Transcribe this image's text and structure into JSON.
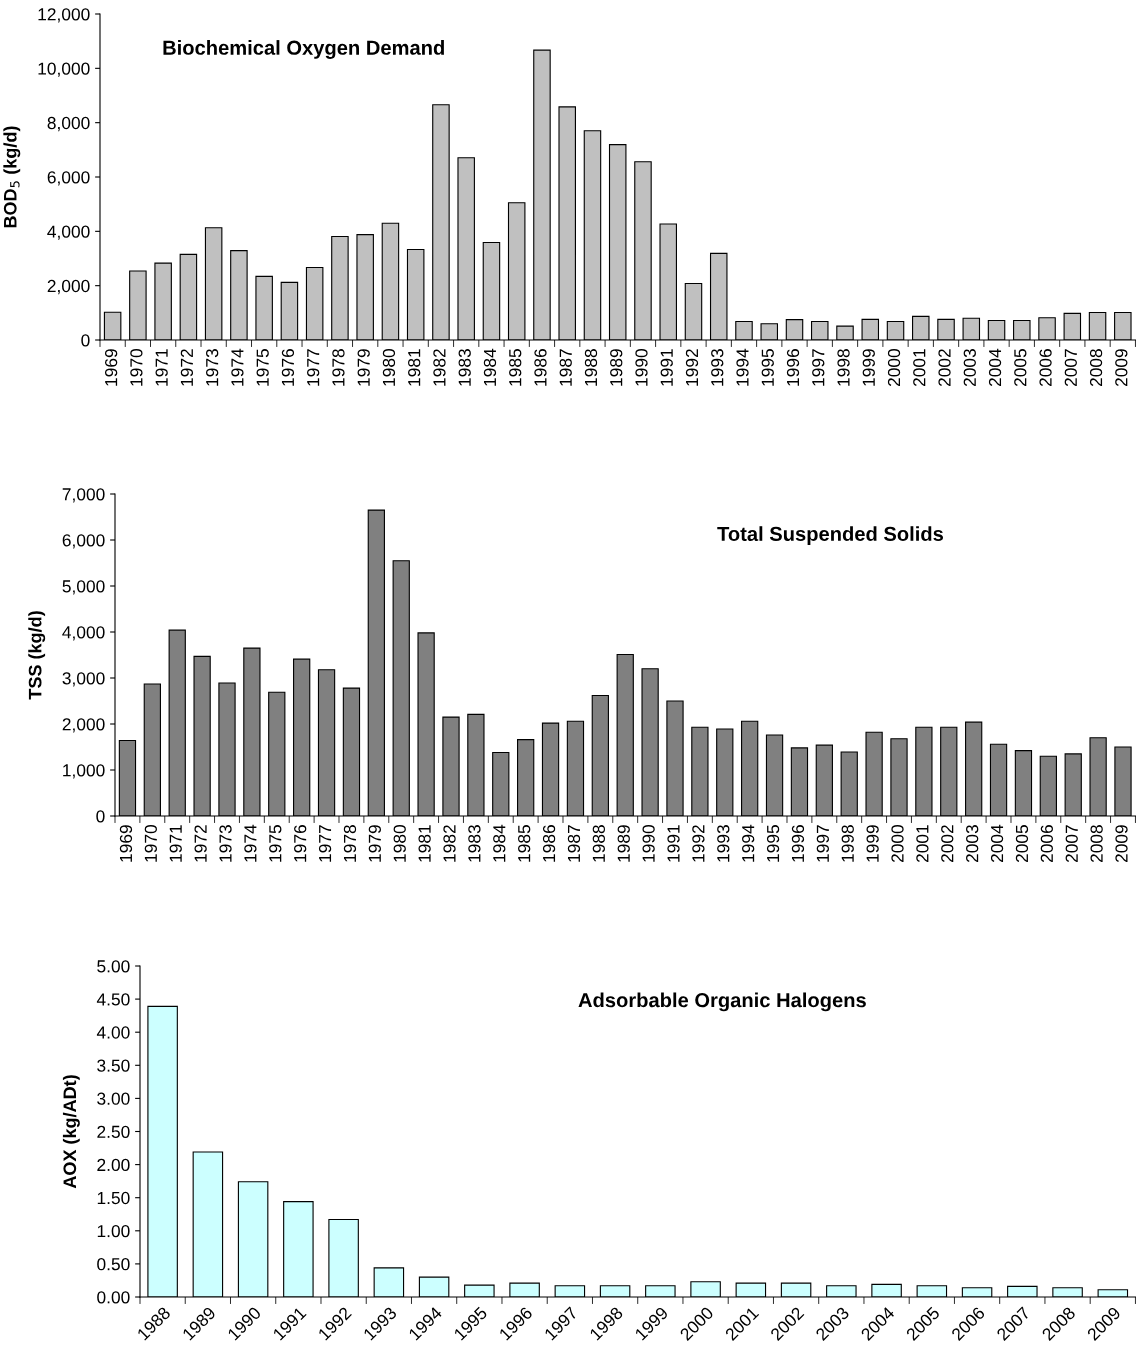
{
  "chart_data": [
    {
      "type": "bar",
      "title": "Biochemical Oxygen Demand",
      "ylabel": "BOD$_{5}$ (kg/d)",
      "categories": [
        "1969",
        "1970",
        "1971",
        "1972",
        "1973",
        "1974",
        "1975",
        "1976",
        "1977",
        "1978",
        "1979",
        "1980",
        "1981",
        "1982",
        "1983",
        "1984",
        "1985",
        "1986",
        "1987",
        "1988",
        "1989",
        "1990",
        "1991",
        "1992",
        "1993",
        "1994",
        "1995",
        "1996",
        "1997",
        "1998",
        "1999",
        "2000",
        "2001",
        "2002",
        "2003",
        "2004",
        "2005",
        "2006",
        "2007",
        "2008",
        "2009"
      ],
      "values": [
        1020,
        2540,
        2830,
        3150,
        4130,
        3290,
        2340,
        2120,
        2670,
        3810,
        3880,
        4300,
        3330,
        8660,
        6710,
        3590,
        5050,
        10670,
        8580,
        7700,
        7190,
        6560,
        4270,
        2080,
        3190,
        680,
        600,
        750,
        680,
        510,
        760,
        680,
        870,
        760,
        800,
        720,
        720,
        820,
        980,
        1010,
        1010
      ],
      "color": "#c0c0c0",
      "ylim": [
        0,
        12000
      ],
      "yticks": [
        {
          "value": 0,
          "label": "0"
        },
        {
          "value": 2000,
          "label": "2,000"
        },
        {
          "value": 4000,
          "label": "4,000"
        },
        {
          "value": 6000,
          "label": "6,000"
        },
        {
          "value": 8000,
          "label": "8,000"
        },
        {
          "value": 10000,
          "label": "10,000"
        },
        {
          "value": 12000,
          "label": "12,000"
        }
      ],
      "grid": false,
      "legend": false
    },
    {
      "type": "bar",
      "title": "Total Suspended Solids",
      "ylabel": "TSS (kg/d)",
      "categories": [
        "1969",
        "1970",
        "1971",
        "1972",
        "1973",
        "1974",
        "1975",
        "1976",
        "1977",
        "1978",
        "1979",
        "1980",
        "1981",
        "1982",
        "1983",
        "1984",
        "1985",
        "1986",
        "1987",
        "1988",
        "1989",
        "1990",
        "1991",
        "1992",
        "1993",
        "1994",
        "1995",
        "1996",
        "1997",
        "1998",
        "1999",
        "2000",
        "2001",
        "2002",
        "2003",
        "2004",
        "2005",
        "2006",
        "2007",
        "2008",
        "2009"
      ],
      "values": [
        1640,
        2870,
        4040,
        3470,
        2890,
        3650,
        2690,
        3410,
        3180,
        2780,
        6650,
        5550,
        3980,
        2150,
        2210,
        1380,
        1660,
        2020,
        2060,
        2620,
        3510,
        3200,
        2500,
        1930,
        1890,
        2060,
        1760,
        1480,
        1540,
        1390,
        1820,
        1680,
        1930,
        1930,
        2040,
        1560,
        1420,
        1300,
        1350,
        1700,
        1500
      ],
      "color": "#808080",
      "ylim": [
        0,
        7000
      ],
      "yticks": [
        {
          "value": 0,
          "label": "0"
        },
        {
          "value": 1000,
          "label": "1,000"
        },
        {
          "value": 2000,
          "label": "2,000"
        },
        {
          "value": 3000,
          "label": "3,000"
        },
        {
          "value": 4000,
          "label": "4,000"
        },
        {
          "value": 5000,
          "label": "5,000"
        },
        {
          "value": 6000,
          "label": "6,000"
        },
        {
          "value": 7000,
          "label": "7,000"
        }
      ],
      "grid": false,
      "legend": false
    },
    {
      "type": "bar",
      "title": "Adsorbable Organic Halogens",
      "ylabel": "AOX (kg/ADt)",
      "categories": [
        "1988",
        "1989",
        "1990",
        "1991",
        "1992",
        "1993",
        "1994",
        "1995",
        "1996",
        "1997",
        "1998",
        "1999",
        "2000",
        "2001",
        "2002",
        "2003",
        "2004",
        "2005",
        "2006",
        "2007",
        "2008",
        "2009"
      ],
      "values": [
        4.39,
        2.19,
        1.74,
        1.44,
        1.17,
        0.44,
        0.3,
        0.18,
        0.21,
        0.17,
        0.17,
        0.17,
        0.23,
        0.21,
        0.21,
        0.17,
        0.19,
        0.17,
        0.14,
        0.16,
        0.14,
        0.11
      ],
      "color": "#ccffff",
      "ylim": [
        0,
        5
      ],
      "yticks": [
        {
          "value": 0,
          "label": "0.00"
        },
        {
          "value": 0.5,
          "label": "0.50"
        },
        {
          "value": 1,
          "label": "1.00"
        },
        {
          "value": 1.5,
          "label": "1.50"
        },
        {
          "value": 2,
          "label": "2.00"
        },
        {
          "value": 2.5,
          "label": "2.50"
        },
        {
          "value": 3,
          "label": "3.00"
        },
        {
          "value": 3.5,
          "label": "3.50"
        },
        {
          "value": 4,
          "label": "4.00"
        },
        {
          "value": 4.5,
          "label": "4.50"
        },
        {
          "value": 5,
          "label": "5.00"
        }
      ],
      "grid": false,
      "legend": false
    }
  ]
}
